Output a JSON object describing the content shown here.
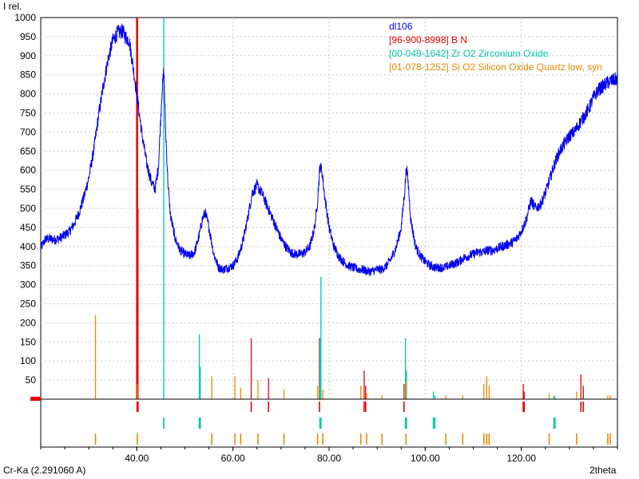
{
  "chart_data": {
    "type": "line",
    "ylabel": "I rel.",
    "xlabel": "2theta",
    "radiation_label": "Cr-Ka (2.291060 A)",
    "xlim": [
      20,
      140
    ],
    "ylim": [
      0,
      1000
    ],
    "grid": true,
    "legend_placement": "top-right",
    "x_ticks": [
      40,
      60,
      80,
      100,
      120
    ],
    "x_tick_labels": [
      "40.00",
      "60.00",
      "80.00",
      "100.00",
      "120.00"
    ],
    "y_ticks": [
      50,
      100,
      150,
      200,
      250,
      300,
      350,
      400,
      450,
      500,
      550,
      600,
      650,
      700,
      750,
      800,
      850,
      900,
      950,
      1000
    ],
    "series": [
      {
        "name": "dl106",
        "color": "#0000ee",
        "points": [
          [
            20,
            395
          ],
          [
            21,
            420
          ],
          [
            22,
            420
          ],
          [
            23,
            418
          ],
          [
            24,
            422
          ],
          [
            25,
            430
          ],
          [
            26,
            440
          ],
          [
            27,
            460
          ],
          [
            28,
            490
          ],
          [
            29,
            530
          ],
          [
            30,
            580
          ],
          [
            31,
            650
          ],
          [
            32,
            740
          ],
          [
            33,
            820
          ],
          [
            34,
            890
          ],
          [
            35,
            940
          ],
          [
            36,
            960
          ],
          [
            37,
            965
          ],
          [
            37.6,
            950
          ],
          [
            38.4,
            940
          ],
          [
            39,
            890
          ],
          [
            40,
            800
          ],
          [
            41,
            700
          ],
          [
            42,
            620
          ],
          [
            43,
            570
          ],
          [
            43.8,
            550
          ],
          [
            44.5,
            610
          ],
          [
            45.2,
            800
          ],
          [
            45.6,
            860
          ],
          [
            46,
            700
          ],
          [
            46.5,
            560
          ],
          [
            47,
            480
          ],
          [
            48,
            420
          ],
          [
            49,
            390
          ],
          [
            50,
            380
          ],
          [
            51,
            375
          ],
          [
            52,
            385
          ],
          [
            53,
            430
          ],
          [
            53.6,
            470
          ],
          [
            54.2,
            490
          ],
          [
            55,
            450
          ],
          [
            56,
            380
          ],
          [
            57,
            345
          ],
          [
            58,
            340
          ],
          [
            59,
            345
          ],
          [
            60,
            350
          ],
          [
            61,
            370
          ],
          [
            62,
            410
          ],
          [
            63,
            470
          ],
          [
            64,
            540
          ],
          [
            65,
            560
          ],
          [
            66,
            540
          ],
          [
            67,
            510
          ],
          [
            68,
            480
          ],
          [
            69,
            450
          ],
          [
            70,
            420
          ],
          [
            71,
            400
          ],
          [
            72,
            385
          ],
          [
            73,
            380
          ],
          [
            74,
            380
          ],
          [
            75,
            385
          ],
          [
            76,
            400
          ],
          [
            77,
            450
          ],
          [
            77.6,
            520
          ],
          [
            78.1,
            610
          ],
          [
            78.5,
            600
          ],
          [
            79,
            540
          ],
          [
            80,
            450
          ],
          [
            81,
            400
          ],
          [
            82,
            375
          ],
          [
            83,
            360
          ],
          [
            84,
            350
          ],
          [
            85,
            345
          ],
          [
            86,
            340
          ],
          [
            87,
            340
          ],
          [
            88,
            335
          ],
          [
            89,
            335
          ],
          [
            90,
            340
          ],
          [
            91,
            340
          ],
          [
            92,
            350
          ],
          [
            93,
            370
          ],
          [
            94,
            400
          ],
          [
            95,
            450
          ],
          [
            95.7,
            540
          ],
          [
            96.1,
            610
          ],
          [
            96.5,
            560
          ],
          [
            97,
            470
          ],
          [
            98,
            400
          ],
          [
            99,
            375
          ],
          [
            100,
            360
          ],
          [
            101,
            350
          ],
          [
            102,
            345
          ],
          [
            103,
            345
          ],
          [
            104,
            345
          ],
          [
            105,
            350
          ],
          [
            106,
            355
          ],
          [
            107,
            360
          ],
          [
            108,
            370
          ],
          [
            109,
            375
          ],
          [
            110,
            380
          ],
          [
            111,
            385
          ],
          [
            112,
            385
          ],
          [
            113,
            390
          ],
          [
            114,
            390
          ],
          [
            115,
            395
          ],
          [
            116,
            400
          ],
          [
            117,
            405
          ],
          [
            118,
            410
          ],
          [
            119,
            420
          ],
          [
            120,
            440
          ],
          [
            121,
            470
          ],
          [
            122,
            520
          ],
          [
            123,
            500
          ],
          [
            124,
            510
          ],
          [
            125,
            540
          ],
          [
            126,
            580
          ],
          [
            127,
            620
          ],
          [
            128,
            650
          ],
          [
            129,
            670
          ],
          [
            130,
            690
          ],
          [
            131,
            700
          ],
          [
            132,
            720
          ],
          [
            133,
            740
          ],
          [
            134,
            760
          ],
          [
            135,
            790
          ],
          [
            136,
            810
          ],
          [
            137,
            820
          ],
          [
            138,
            830
          ],
          [
            139,
            835
          ],
          [
            140,
            840
          ]
        ]
      }
    ],
    "phases": [
      {
        "name": "[96-900-8998] B N",
        "color": "#ee0000",
        "peaks": [
          [
            40.05,
            1000
          ],
          [
            40.25,
            500
          ],
          [
            63.8,
            160
          ],
          [
            67.4,
            55
          ],
          [
            78.0,
            160
          ],
          [
            87.3,
            75
          ],
          [
            87.6,
            35
          ],
          [
            95.6,
            40
          ],
          [
            120.4,
            40
          ],
          [
            120.6,
            20
          ],
          [
            132.4,
            65
          ],
          [
            132.9,
            35
          ]
        ]
      },
      {
        "name": "[00-049-1642] Zr O2 Zirconium Oxide",
        "color": "#00c8a0",
        "peaks": [
          [
            45.6,
            1000
          ],
          [
            53.0,
            170
          ],
          [
            53.2,
            85
          ],
          [
            78.3,
            320
          ],
          [
            78.1,
            160
          ],
          [
            95.9,
            160
          ],
          [
            96.1,
            75
          ],
          [
            101.7,
            20
          ],
          [
            102.0,
            10
          ],
          [
            126.8,
            10
          ],
          [
            127.0,
            5
          ]
        ]
      },
      {
        "name": "[01-078-1252] Si O2 Silicon Oxide Quartz low, syn",
        "color": "#ee8800",
        "peaks": [
          [
            31.4,
            220
          ],
          [
            40.1,
            40
          ],
          [
            55.6,
            60
          ],
          [
            60.4,
            60
          ],
          [
            61.6,
            30
          ],
          [
            65.2,
            50
          ],
          [
            70.6,
            25
          ],
          [
            77.6,
            35
          ],
          [
            78.7,
            25
          ],
          [
            86.6,
            35
          ],
          [
            87.8,
            15
          ],
          [
            91.0,
            10
          ],
          [
            96.0,
            45
          ],
          [
            104.3,
            10
          ],
          [
            107.8,
            10
          ],
          [
            112.2,
            40
          ],
          [
            112.8,
            60
          ],
          [
            113.3,
            35
          ],
          [
            125.8,
            15
          ],
          [
            131.5,
            20
          ],
          [
            138.0,
            10
          ],
          [
            138.5,
            10
          ]
        ]
      }
    ]
  }
}
